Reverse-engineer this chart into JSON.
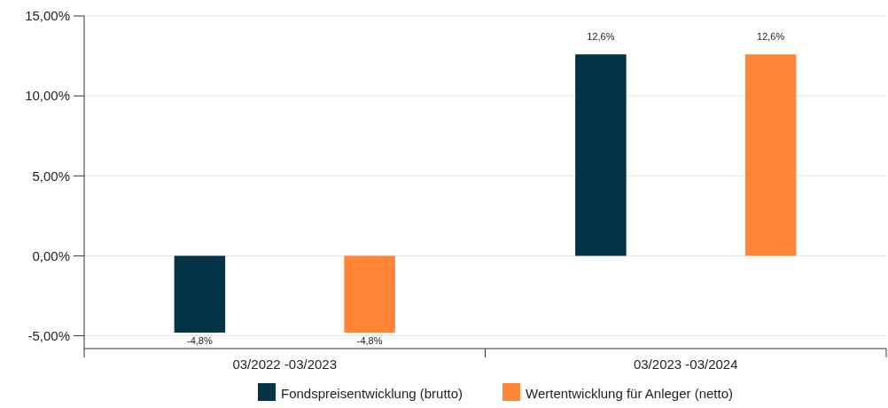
{
  "chart_data": {
    "type": "bar",
    "categories": [
      "03/2022 -03/2023",
      "03/2023 -03/2024"
    ],
    "series": [
      {
        "name": "Fondspreisentwicklung (brutto)",
        "color": "#033346",
        "values": [
          -4.8,
          12.6
        ],
        "value_labels": [
          "-4,8%",
          "12,6%"
        ]
      },
      {
        "name": "Wertentwicklung für Anleger (netto)",
        "color": "#ff8434",
        "values": [
          -4.8,
          12.6
        ],
        "value_labels": [
          "-4,8%",
          "12,6%"
        ]
      }
    ],
    "ylim": [
      -5.8,
      15
    ],
    "yticks": [
      {
        "value": -5,
        "label": "-5,00%"
      },
      {
        "value": 0,
        "label": "0,00%"
      },
      {
        "value": 5,
        "label": "5,00%"
      },
      {
        "value": 10,
        "label": "10,00%"
      },
      {
        "value": 15,
        "label": "15,00%"
      }
    ],
    "grid": "y",
    "legend": "bottom"
  }
}
